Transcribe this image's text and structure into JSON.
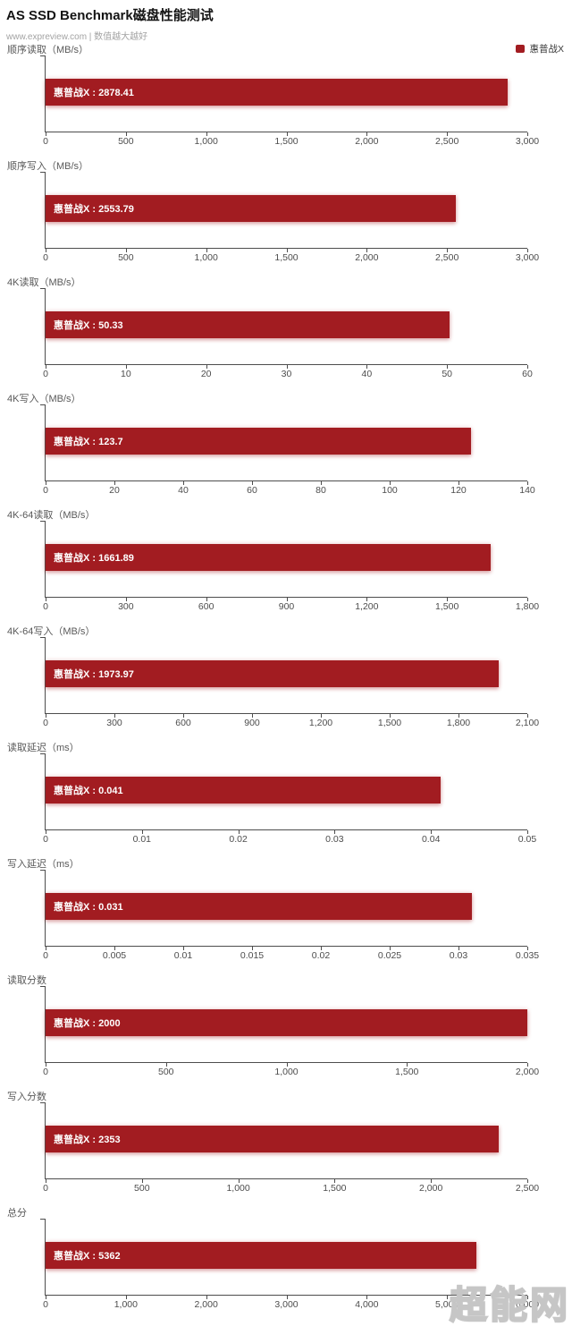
{
  "header": {
    "title": "AS SSD Benchmark磁盘性能测试",
    "subtitle": "www.expreview.com | 数值越大越好"
  },
  "legend": {
    "label": "惠普战X",
    "color": "#a21c21"
  },
  "watermark": "超能网",
  "colors": {
    "bar": "#a21c21",
    "axis": "#4d4d4d",
    "bar_label_text": "#ffffff"
  },
  "chart_data": [
    {
      "type": "bar",
      "orientation": "horizontal",
      "title": "顺序读取（MB/s）",
      "series_name": "惠普战X",
      "value": 2878.41,
      "bar_label": "惠普战X : 2878.41",
      "xlim": [
        0,
        3000
      ],
      "ticks": [
        "0",
        "500",
        "1,000",
        "1,500",
        "2,000",
        "2,500",
        "3,000"
      ]
    },
    {
      "type": "bar",
      "orientation": "horizontal",
      "title": "顺序写入（MB/s）",
      "series_name": "惠普战X",
      "value": 2553.79,
      "bar_label": "惠普战X : 2553.79",
      "xlim": [
        0,
        3000
      ],
      "ticks": [
        "0",
        "500",
        "1,000",
        "1,500",
        "2,000",
        "2,500",
        "3,000"
      ]
    },
    {
      "type": "bar",
      "orientation": "horizontal",
      "title": "4K读取（MB/s）",
      "series_name": "惠普战X",
      "value": 50.33,
      "bar_label": "惠普战X : 50.33",
      "xlim": [
        0,
        60
      ],
      "ticks": [
        "0",
        "10",
        "20",
        "30",
        "40",
        "50",
        "60"
      ]
    },
    {
      "type": "bar",
      "orientation": "horizontal",
      "title": "4K写入（MB/s）",
      "series_name": "惠普战X",
      "value": 123.7,
      "bar_label": "惠普战X : 123.7",
      "xlim": [
        0,
        140
      ],
      "ticks": [
        "0",
        "20",
        "40",
        "60",
        "80",
        "100",
        "120",
        "140"
      ]
    },
    {
      "type": "bar",
      "orientation": "horizontal",
      "title": "4K-64读取（MB/s）",
      "series_name": "惠普战X",
      "value": 1661.89,
      "bar_label": "惠普战X : 1661.89",
      "xlim": [
        0,
        1800
      ],
      "ticks": [
        "0",
        "300",
        "600",
        "900",
        "1,200",
        "1,500",
        "1,800"
      ]
    },
    {
      "type": "bar",
      "orientation": "horizontal",
      "title": "4K-64写入（MB/s）",
      "series_name": "惠普战X",
      "value": 1973.97,
      "bar_label": "惠普战X : 1973.97",
      "xlim": [
        0,
        2100
      ],
      "ticks": [
        "0",
        "300",
        "600",
        "900",
        "1,200",
        "1,500",
        "1,800",
        "2,100"
      ]
    },
    {
      "type": "bar",
      "orientation": "horizontal",
      "title": "读取延迟（ms）",
      "series_name": "惠普战X",
      "value": 0.041,
      "bar_label": "惠普战X : 0.041",
      "xlim": [
        0,
        0.05
      ],
      "ticks": [
        "0",
        "0.01",
        "0.02",
        "0.03",
        "0.04",
        "0.05"
      ]
    },
    {
      "type": "bar",
      "orientation": "horizontal",
      "title": "写入延迟（ms）",
      "series_name": "惠普战X",
      "value": 0.031,
      "bar_label": "惠普战X : 0.031",
      "xlim": [
        0,
        0.035
      ],
      "ticks": [
        "0",
        "0.005",
        "0.01",
        "0.015",
        "0.02",
        "0.025",
        "0.03",
        "0.035"
      ]
    },
    {
      "type": "bar",
      "orientation": "horizontal",
      "title": "读取分数",
      "series_name": "惠普战X",
      "value": 2000,
      "bar_label": "惠普战X : 2000",
      "xlim": [
        0,
        2000
      ],
      "ticks": [
        "0",
        "500",
        "1,000",
        "1,500",
        "2,000"
      ]
    },
    {
      "type": "bar",
      "orientation": "horizontal",
      "title": "写入分数",
      "series_name": "惠普战X",
      "value": 2353,
      "bar_label": "惠普战X : 2353",
      "xlim": [
        0,
        2500
      ],
      "ticks": [
        "0",
        "500",
        "1,000",
        "1,500",
        "2,000",
        "2,500"
      ]
    },
    {
      "type": "bar",
      "orientation": "horizontal",
      "title": "总分",
      "series_name": "惠普战X",
      "value": 5362,
      "bar_label": "惠普战X : 5362",
      "xlim": [
        0,
        6000
      ],
      "ticks": [
        "0",
        "1,000",
        "2,000",
        "3,000",
        "4,000",
        "5,000",
        "6,000"
      ]
    }
  ]
}
